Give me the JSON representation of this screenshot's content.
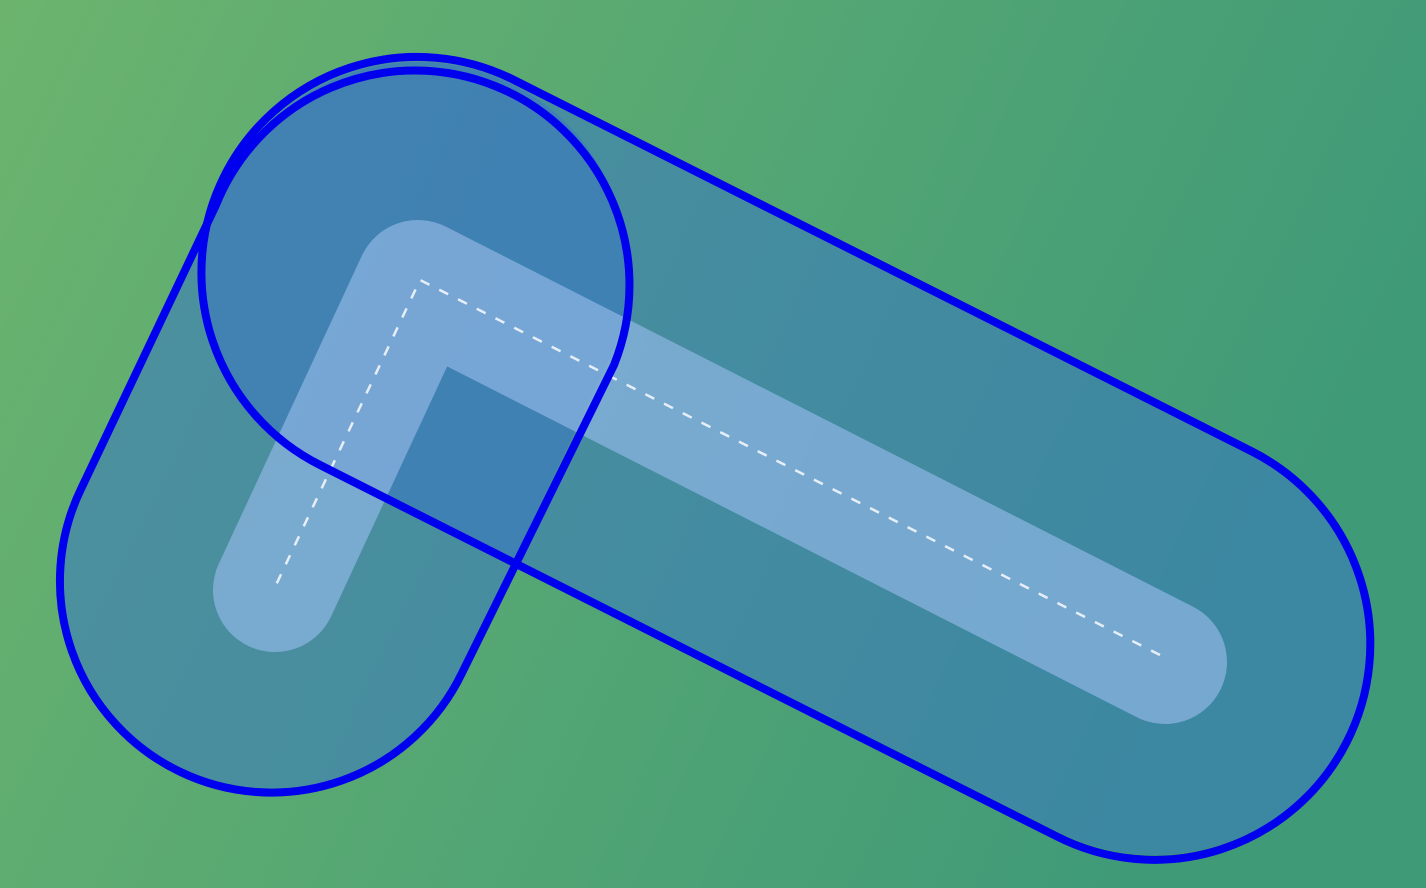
{
  "diagram": {
    "description_kind": "collision-capsules-around-bent-path",
    "colors": {
      "background_left": "#6cb46e",
      "background_right": "#3f9a78",
      "capsule_fill": "#3a78c4",
      "capsule_stroke": "#0000ee",
      "inner_fill": "#8fb6e4",
      "inner_stroke": "#d8e6f6",
      "dashed_path": "#e6eef8"
    }
  }
}
